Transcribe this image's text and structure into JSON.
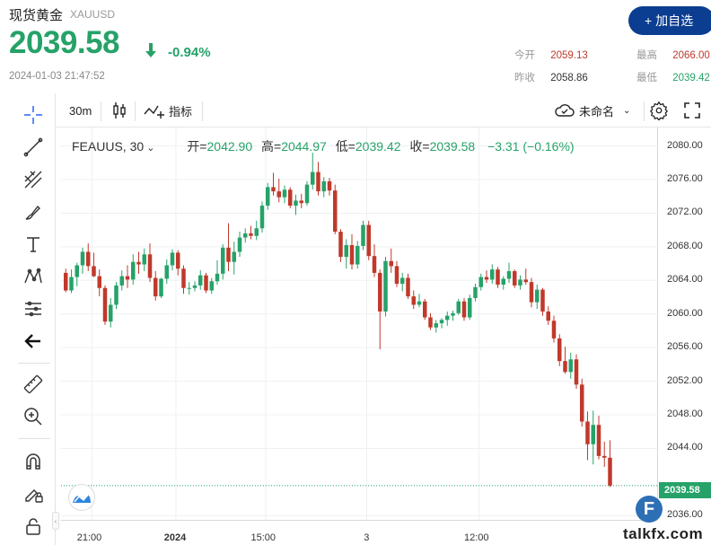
{
  "header": {
    "title": "现货黄金",
    "code": "XAUUSD",
    "price": "2039.58",
    "change_pct": "-0.94%",
    "timestamp": "2024-01-03 21:47:52",
    "add_button": "+ 加自选"
  },
  "stats": {
    "open_label": "今开",
    "open_value": "2059.13",
    "prev_close_label": "昨收",
    "prev_close_value": "2058.86",
    "high_label": "最高",
    "high_value": "2066.00",
    "low_label": "最低",
    "low_value": "2039.42"
  },
  "toolbar": {
    "interval": "30m",
    "indicators": "指标",
    "layout_name": "未命名"
  },
  "legend": {
    "symbol": "FEAUUS, 30",
    "open_label": "开=",
    "open_value": "2042.90",
    "high_label": "高=",
    "high_value": "2044.97",
    "low_label": "低=",
    "low_value": "2039.42",
    "close_label": "收=",
    "close_value": "2039.58",
    "change": "−3.31 (−0.16%)"
  },
  "colors": {
    "up": "#26a269",
    "down": "#c0392b",
    "brand": "#0b3d91"
  },
  "last_price_tag": "2039.58",
  "watermark": "talkfx.com",
  "chart_data": {
    "type": "candlestick",
    "y_ticks": [
      "2080.00",
      "2076.00",
      "2072.00",
      "2068.00",
      "2064.00",
      "2060.00",
      "2056.00",
      "2052.00",
      "2048.00",
      "2044.00",
      "2036.00"
    ],
    "ylim": [
      2035.5,
      2082.2
    ],
    "x_ticks": [
      {
        "label": "21:00",
        "index": 5
      },
      {
        "label": "2024",
        "index": 20
      },
      {
        "label": "15:00",
        "index": 36
      },
      {
        "label": "3",
        "index": 54
      },
      {
        "label": "12:00",
        "index": 74
      }
    ],
    "candles": [
      [
        2064.9,
        2065.4,
        2062.6,
        2062.8
      ],
      [
        2062.8,
        2065.3,
        2062.5,
        2064.4
      ],
      [
        2064.4,
        2066.1,
        2063.3,
        2065.8
      ],
      [
        2065.8,
        2067.9,
        2064.8,
        2067.4
      ],
      [
        2067.4,
        2068.4,
        2065.1,
        2065.7
      ],
      [
        2065.7,
        2067.3,
        2064.4,
        2064.5
      ],
      [
        2064.5,
        2065.3,
        2062.1,
        2063.1
      ],
      [
        2063.1,
        2063.4,
        2058.7,
        2059.1
      ],
      [
        2059.1,
        2061.9,
        2058.4,
        2061.1
      ],
      [
        2061.1,
        2063.8,
        2060.6,
        2063.4
      ],
      [
        2063.4,
        2065.2,
        2062.8,
        2064.5
      ],
      [
        2064.5,
        2065.8,
        2063.1,
        2064.1
      ],
      [
        2064.1,
        2067.1,
        2063.5,
        2066.2
      ],
      [
        2066.2,
        2067.4,
        2064.8,
        2065.9
      ],
      [
        2065.9,
        2067.8,
        2065.1,
        2067.1
      ],
      [
        2067.1,
        2068.4,
        2063.8,
        2064.3
      ],
      [
        2064.3,
        2065.1,
        2061.6,
        2062.1
      ],
      [
        2062.1,
        2064.3,
        2061.9,
        2064.2
      ],
      [
        2064.2,
        2066.5,
        2063.6,
        2065.8
      ],
      [
        2065.8,
        2067.7,
        2065.2,
        2067.3
      ],
      [
        2067.3,
        2067.6,
        2064.6,
        2065.4
      ],
      [
        2065.4,
        2065.8,
        2062.4,
        2063.1
      ],
      [
        2063.1,
        2063.8,
        2062.3,
        2063.1
      ],
      [
        2063.1,
        2063.9,
        2062.7,
        2063.4
      ],
      [
        2063.4,
        2065.2,
        2062.9,
        2064.6
      ],
      [
        2064.6,
        2064.9,
        2062.5,
        2062.8
      ],
      [
        2062.8,
        2064.3,
        2062.4,
        2063.9
      ],
      [
        2063.9,
        2066.4,
        2063.5,
        2064.8
      ],
      [
        2064.8,
        2068.3,
        2064.1,
        2067.9
      ],
      [
        2067.9,
        2070.8,
        2065.1,
        2066.2
      ],
      [
        2066.2,
        2068.6,
        2064.7,
        2067.4
      ],
      [
        2067.4,
        2069.8,
        2066.8,
        2069.1
      ],
      [
        2069.1,
        2070.2,
        2068.5,
        2069.6
      ],
      [
        2069.6,
        2070.5,
        2068.9,
        2069.3
      ],
      [
        2069.3,
        2071.1,
        2068.8,
        2070.2
      ],
      [
        2070.2,
        2073.4,
        2069.7,
        2072.9
      ],
      [
        2072.9,
        2075.6,
        2072.4,
        2075.1
      ],
      [
        2075.1,
        2076.8,
        2074.1,
        2074.6
      ],
      [
        2074.6,
        2076.1,
        2073.3,
        2073.9
      ],
      [
        2073.9,
        2075.3,
        2073.2,
        2074.8
      ],
      [
        2074.8,
        2075.1,
        2072.6,
        2072.9
      ],
      [
        2072.9,
        2074.2,
        2071.8,
        2073.5
      ],
      [
        2073.5,
        2074.3,
        2072.6,
        2073.2
      ],
      [
        2073.2,
        2075.8,
        2072.9,
        2075.4
      ],
      [
        2075.4,
        2079.2,
        2074.8,
        2076.9
      ],
      [
        2076.9,
        2078.1,
        2074.1,
        2074.6
      ],
      [
        2074.6,
        2076.3,
        2073.9,
        2075.8
      ],
      [
        2075.8,
        2076.2,
        2074.1,
        2074.7
      ],
      [
        2074.7,
        2075.4,
        2069.5,
        2069.8
      ],
      [
        2069.8,
        2070.1,
        2066.2,
        2066.8
      ],
      [
        2066.8,
        2068.9,
        2065.4,
        2068.2
      ],
      [
        2068.2,
        2069.5,
        2065.3,
        2065.9
      ],
      [
        2065.9,
        2068.7,
        2065.4,
        2068.1
      ],
      [
        2068.1,
        2071.1,
        2067.6,
        2070.6
      ],
      [
        2070.6,
        2071.1,
        2066.4,
        2066.9
      ],
      [
        2066.9,
        2068.3,
        2064.4,
        2064.9
      ],
      [
        2064.9,
        2065.3,
        2055.8,
        2060.3
      ],
      [
        2060.3,
        2066.8,
        2059.7,
        2066.3
      ],
      [
        2066.3,
        2067.8,
        2064.9,
        2065.7
      ],
      [
        2065.7,
        2066.3,
        2063.2,
        2063.6
      ],
      [
        2063.6,
        2064.9,
        2062.7,
        2064.3
      ],
      [
        2064.3,
        2064.8,
        2061.8,
        2062.1
      ],
      [
        2062.1,
        2062.8,
        2060.6,
        2061.1
      ],
      [
        2061.1,
        2062.4,
        2060.8,
        2061.5
      ],
      [
        2061.5,
        2061.8,
        2059.3,
        2059.6
      ],
      [
        2059.6,
        2060.1,
        2058.1,
        2058.4
      ],
      [
        2058.4,
        2059.3,
        2057.8,
        2058.9
      ],
      [
        2058.9,
        2059.5,
        2058.3,
        2059.3
      ],
      [
        2059.3,
        2060.3,
        2058.6,
        2059.8
      ],
      [
        2059.8,
        2060.4,
        2059.2,
        2060.1
      ],
      [
        2060.1,
        2061.8,
        2059.9,
        2061.5
      ],
      [
        2061.5,
        2061.9,
        2059.2,
        2059.6
      ],
      [
        2059.6,
        2062.3,
        2059.3,
        2061.9
      ],
      [
        2061.9,
        2063.6,
        2061.5,
        2063.2
      ],
      [
        2063.2,
        2064.8,
        2062.8,
        2064.4
      ],
      [
        2064.4,
        2065.2,
        2063.7,
        2064.1
      ],
      [
        2064.1,
        2065.9,
        2063.6,
        2065.3
      ],
      [
        2065.3,
        2065.6,
        2063.1,
        2063.5
      ],
      [
        2063.5,
        2064.5,
        2062.9,
        2064.2
      ],
      [
        2064.2,
        2066.1,
        2063.7,
        2065.1
      ],
      [
        2065.1,
        2065.3,
        2063.1,
        2063.4
      ],
      [
        2063.4,
        2064.6,
        2062.9,
        2064.1
      ],
      [
        2064.1,
        2065.4,
        2063.5,
        2063.8
      ],
      [
        2063.8,
        2064.3,
        2060.8,
        2061.4
      ],
      [
        2061.4,
        2063.5,
        2060.6,
        2062.9
      ],
      [
        2062.9,
        2063.1,
        2059.8,
        2060.3
      ],
      [
        2060.3,
        2060.9,
        2058.7,
        2059.2
      ],
      [
        2059.2,
        2059.8,
        2056.6,
        2057.1
      ],
      [
        2057.1,
        2057.6,
        2053.8,
        2054.4
      ],
      [
        2054.4,
        2056.1,
        2052.9,
        2053.1
      ],
      [
        2053.1,
        2055.4,
        2052.3,
        2054.6
      ],
      [
        2054.6,
        2055.2,
        2051.1,
        2051.6
      ],
      [
        2051.6,
        2052.3,
        2046.6,
        2047.2
      ],
      [
        2047.2,
        2048.4,
        2042.6,
        2044.5
      ],
      [
        2044.5,
        2048.5,
        2042.1,
        2046.8
      ],
      [
        2046.8,
        2047.9,
        2042.7,
        2043.1
      ],
      [
        2043.1,
        2044.8,
        2041.8,
        2042.9
      ],
      [
        2042.9,
        2044.97,
        2039.42,
        2039.58
      ]
    ]
  }
}
